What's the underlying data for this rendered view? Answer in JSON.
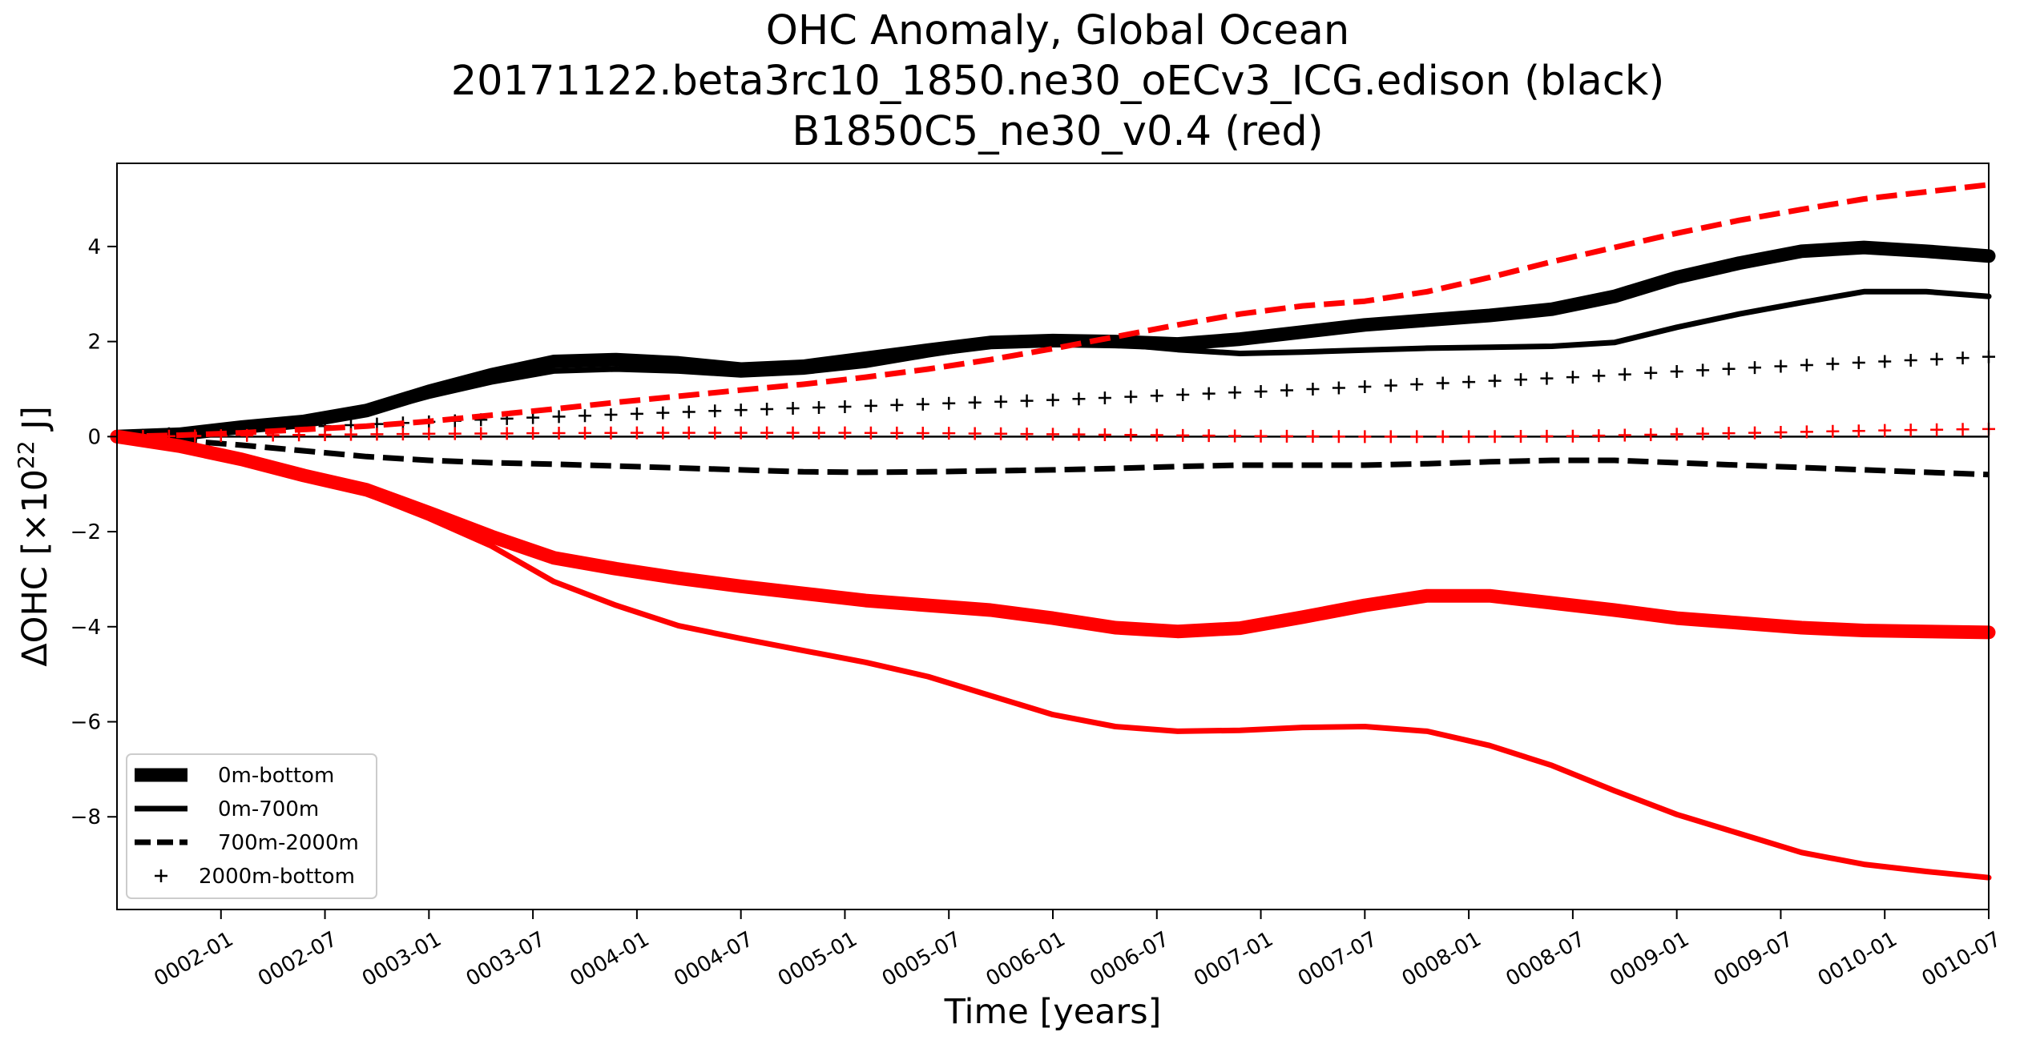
{
  "chart_data": {
    "type": "line",
    "title_lines": [
      "OHC Anomaly, Global Ocean",
      "20171122.beta3rc10_1850.ne30_oECv3_ICG.edison (black)",
      "B1850C5_ne30_v0.4 (red)"
    ],
    "xlabel": "Time [years]",
    "ylabel_prefix": "ΔOHC [×10",
    "ylabel_exp": "22",
    "ylabel_suffix": " J]",
    "xlim": [
      1.0,
      10.0
    ],
    "ylim": [
      -9.95,
      5.75
    ],
    "x_ticks": [
      {
        "value": 1.5,
        "label": "0002-01"
      },
      {
        "value": 2.0,
        "label": "0002-07"
      },
      {
        "value": 2.5,
        "label": "0003-01"
      },
      {
        "value": 3.0,
        "label": "0003-07"
      },
      {
        "value": 3.5,
        "label": "0004-01"
      },
      {
        "value": 4.0,
        "label": "0004-07"
      },
      {
        "value": 4.5,
        "label": "0005-01"
      },
      {
        "value": 5.0,
        "label": "0005-07"
      },
      {
        "value": 5.5,
        "label": "0006-01"
      },
      {
        "value": 6.0,
        "label": "0006-07"
      },
      {
        "value": 6.5,
        "label": "0007-01"
      },
      {
        "value": 7.0,
        "label": "0007-07"
      },
      {
        "value": 7.5,
        "label": "0008-01"
      },
      {
        "value": 8.0,
        "label": "0008-07"
      },
      {
        "value": 8.5,
        "label": "0009-01"
      },
      {
        "value": 9.0,
        "label": "0009-07"
      },
      {
        "value": 9.5,
        "label": "0010-01"
      },
      {
        "value": 10.0,
        "label": "0010-07"
      }
    ],
    "y_ticks": [
      {
        "value": 4,
        "label": "4"
      },
      {
        "value": 2,
        "label": "2"
      },
      {
        "value": 0,
        "label": "0"
      },
      {
        "value": -2,
        "label": "−2"
      },
      {
        "value": -4,
        "label": "−4"
      },
      {
        "value": -6,
        "label": "−6"
      },
      {
        "value": -8,
        "label": "−8"
      }
    ],
    "zero_line": true,
    "grid": false,
    "legend": {
      "placement": "lower-left",
      "entries": [
        {
          "label": "0m-bottom",
          "style": "thick"
        },
        {
          "label": "0m-700m",
          "style": "solid"
        },
        {
          "label": "700m-2000m",
          "style": "dashed"
        },
        {
          "label": "2000m-bottom",
          "style": "plus"
        }
      ]
    },
    "colors": {
      "black_run": "#000000",
      "red_run": "#ff0000"
    },
    "series": [
      {
        "run": "black",
        "style": "thick",
        "color": "#000000",
        "x": [
          1.0,
          1.3,
          1.6,
          1.9,
          2.2,
          2.5,
          2.8,
          3.1,
          3.4,
          3.7,
          4.0,
          4.3,
          4.6,
          4.9,
          5.2,
          5.5,
          5.8,
          6.1,
          6.4,
          6.7,
          7.0,
          7.3,
          7.6,
          7.9,
          8.2,
          8.5,
          8.8,
          9.1,
          9.4,
          9.7,
          10.0
        ],
        "y": [
          0.0,
          0.05,
          0.2,
          0.32,
          0.55,
          0.95,
          1.3,
          1.58,
          1.62,
          1.55,
          1.42,
          1.48,
          1.65,
          1.82,
          1.98,
          2.02,
          2.0,
          1.95,
          2.05,
          2.2,
          2.35,
          2.45,
          2.55,
          2.68,
          2.95,
          3.35,
          3.65,
          3.9,
          3.98,
          3.9,
          3.8
        ]
      },
      {
        "run": "black",
        "style": "solid",
        "color": "#000000",
        "x": [
          1.0,
          1.3,
          1.6,
          1.9,
          2.2,
          2.5,
          2.8,
          3.1,
          3.4,
          3.7,
          4.0,
          4.3,
          4.6,
          4.9,
          5.2,
          5.5,
          5.8,
          6.1,
          6.4,
          6.7,
          7.0,
          7.3,
          7.6,
          7.9,
          8.2,
          8.5,
          8.8,
          9.1,
          9.4,
          9.7,
          10.0
        ],
        "y": [
          0.0,
          0.04,
          0.16,
          0.3,
          0.5,
          0.85,
          1.15,
          1.38,
          1.42,
          1.38,
          1.3,
          1.36,
          1.5,
          1.72,
          1.92,
          2.0,
          1.95,
          1.83,
          1.75,
          1.78,
          1.82,
          1.86,
          1.88,
          1.9,
          1.98,
          2.3,
          2.58,
          2.82,
          3.05,
          3.05,
          2.95
        ]
      },
      {
        "run": "black",
        "style": "dashed",
        "color": "#000000",
        "x": [
          1.0,
          1.3,
          1.6,
          1.9,
          2.2,
          2.5,
          2.8,
          3.1,
          3.4,
          3.7,
          4.0,
          4.3,
          4.6,
          4.9,
          5.2,
          5.5,
          5.8,
          6.1,
          6.4,
          6.7,
          7.0,
          7.3,
          7.6,
          7.9,
          8.2,
          8.5,
          8.8,
          9.1,
          9.4,
          9.7,
          10.0
        ],
        "y": [
          0.0,
          -0.08,
          -0.18,
          -0.3,
          -0.42,
          -0.5,
          -0.55,
          -0.58,
          -0.62,
          -0.66,
          -0.7,
          -0.74,
          -0.75,
          -0.74,
          -0.72,
          -0.7,
          -0.67,
          -0.63,
          -0.6,
          -0.6,
          -0.6,
          -0.57,
          -0.53,
          -0.5,
          -0.5,
          -0.55,
          -0.6,
          -0.65,
          -0.7,
          -0.75,
          -0.8
        ]
      },
      {
        "run": "black",
        "style": "plus",
        "color": "#000000",
        "x": [
          1.0,
          1.5,
          2.0,
          2.5,
          3.0,
          3.5,
          4.0,
          4.5,
          5.0,
          5.5,
          6.0,
          6.5,
          7.0,
          7.5,
          8.0,
          8.5,
          9.0,
          9.5,
          10.0
        ],
        "y": [
          0.0,
          0.12,
          0.22,
          0.31,
          0.4,
          0.48,
          0.56,
          0.63,
          0.7,
          0.77,
          0.86,
          0.95,
          1.05,
          1.15,
          1.25,
          1.37,
          1.48,
          1.58,
          1.68
        ]
      },
      {
        "run": "red",
        "style": "thick",
        "color": "#ff0000",
        "x": [
          1.0,
          1.3,
          1.6,
          1.9,
          2.2,
          2.5,
          2.8,
          3.1,
          3.4,
          3.7,
          4.0,
          4.3,
          4.6,
          4.9,
          5.2,
          5.5,
          5.8,
          6.1,
          6.4,
          6.7,
          7.0,
          7.3,
          7.6,
          7.9,
          8.2,
          8.5,
          8.8,
          9.1,
          9.4,
          9.7,
          10.0
        ],
        "y": [
          0.0,
          -0.2,
          -0.48,
          -0.82,
          -1.12,
          -1.6,
          -2.1,
          -2.55,
          -2.78,
          -2.98,
          -3.15,
          -3.3,
          -3.45,
          -3.55,
          -3.65,
          -3.82,
          -4.02,
          -4.1,
          -4.03,
          -3.8,
          -3.55,
          -3.35,
          -3.35,
          -3.5,
          -3.65,
          -3.82,
          -3.92,
          -4.02,
          -4.08,
          -4.1,
          -4.12
        ]
      },
      {
        "run": "red",
        "style": "solid",
        "color": "#ff0000",
        "x": [
          1.0,
          1.3,
          1.6,
          1.9,
          2.2,
          2.5,
          2.8,
          3.1,
          3.4,
          3.7,
          4.0,
          4.3,
          4.6,
          4.9,
          5.2,
          5.5,
          5.8,
          6.1,
          6.4,
          6.7,
          7.0,
          7.3,
          7.6,
          7.9,
          8.2,
          8.5,
          8.8,
          9.1,
          9.4,
          9.7,
          10.0
        ],
        "y": [
          0.0,
          -0.22,
          -0.52,
          -0.85,
          -1.2,
          -1.72,
          -2.3,
          -3.05,
          -3.55,
          -3.98,
          -4.25,
          -4.5,
          -4.75,
          -5.05,
          -5.45,
          -5.85,
          -6.1,
          -6.2,
          -6.18,
          -6.12,
          -6.1,
          -6.2,
          -6.5,
          -6.92,
          -7.45,
          -7.95,
          -8.35,
          -8.75,
          -9.0,
          -9.15,
          -9.28
        ]
      },
      {
        "run": "red",
        "style": "dashed",
        "color": "#ff0000",
        "x": [
          1.0,
          1.3,
          1.6,
          1.9,
          2.2,
          2.5,
          2.8,
          3.1,
          3.4,
          3.7,
          4.0,
          4.3,
          4.6,
          4.9,
          5.2,
          5.5,
          5.8,
          6.1,
          6.4,
          6.7,
          7.0,
          7.3,
          7.6,
          7.9,
          8.2,
          8.5,
          8.8,
          9.1,
          9.4,
          9.7,
          10.0
        ],
        "y": [
          0.0,
          0.03,
          0.08,
          0.15,
          0.22,
          0.32,
          0.45,
          0.58,
          0.72,
          0.85,
          0.98,
          1.1,
          1.25,
          1.42,
          1.62,
          1.85,
          2.1,
          2.35,
          2.58,
          2.75,
          2.85,
          3.05,
          3.35,
          3.68,
          3.98,
          4.28,
          4.55,
          4.78,
          5.0,
          5.15,
          5.3
        ]
      },
      {
        "run": "red",
        "style": "plus",
        "color": "#ff0000",
        "x": [
          1.0,
          1.5,
          2.0,
          2.5,
          3.0,
          3.5,
          4.0,
          4.5,
          5.0,
          5.5,
          6.0,
          6.5,
          7.0,
          7.5,
          8.0,
          8.5,
          9.0,
          9.5,
          10.0
        ],
        "y": [
          0.0,
          0.02,
          0.04,
          0.06,
          0.07,
          0.08,
          0.08,
          0.08,
          0.07,
          0.05,
          0.03,
          0.01,
          0.0,
          0.0,
          0.01,
          0.05,
          0.09,
          0.13,
          0.16
        ]
      }
    ]
  }
}
